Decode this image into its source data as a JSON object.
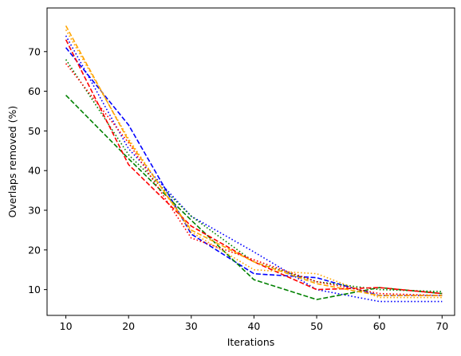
{
  "chart_data": {
    "type": "line",
    "title": "",
    "xlabel": "Iterations",
    "ylabel": "Overlaps removed (%)",
    "xlim": [
      7,
      72
    ],
    "ylim": [
      3.5,
      81
    ],
    "grid": false,
    "xticks": [
      10,
      20,
      30,
      40,
      50,
      60,
      70
    ],
    "yticks": [
      10,
      20,
      30,
      40,
      50,
      60,
      70
    ],
    "x": [
      10,
      20,
      30,
      40,
      50,
      60,
      70
    ],
    "series": [
      {
        "color": "#0000ff",
        "style": "dashed",
        "values": [
          71.0,
          51.5,
          24.0,
          14.0,
          13.0,
          8.5,
          8.5
        ]
      },
      {
        "color": "#0000ff",
        "style": "dotted",
        "values": [
          74.0,
          45.5,
          28.5,
          19.5,
          10.0,
          7.0,
          7.0
        ]
      },
      {
        "color": "#008000",
        "style": "dashed",
        "values": [
          59.0,
          43.0,
          27.5,
          12.5,
          7.5,
          10.5,
          9.0
        ]
      },
      {
        "color": "#008000",
        "style": "dotted",
        "values": [
          68.0,
          44.0,
          28.5,
          17.0,
          12.0,
          10.0,
          9.5
        ]
      },
      {
        "color": "#ff0000",
        "style": "dashed",
        "values": [
          73.0,
          41.5,
          26.0,
          17.0,
          10.0,
          10.5,
          9.0
        ]
      },
      {
        "color": "#ff0000",
        "style": "dotted",
        "values": [
          67.0,
          47.0,
          23.0,
          17.5,
          12.0,
          9.0,
          8.5
        ]
      },
      {
        "color": "#ffa500",
        "style": "dashed",
        "values": [
          76.5,
          47.5,
          25.0,
          17.0,
          11.5,
          8.5,
          8.5
        ]
      },
      {
        "color": "#ffa500",
        "style": "dotted",
        "values": [
          75.5,
          48.0,
          24.5,
          15.0,
          14.0,
          8.0,
          8.0
        ]
      }
    ]
  }
}
